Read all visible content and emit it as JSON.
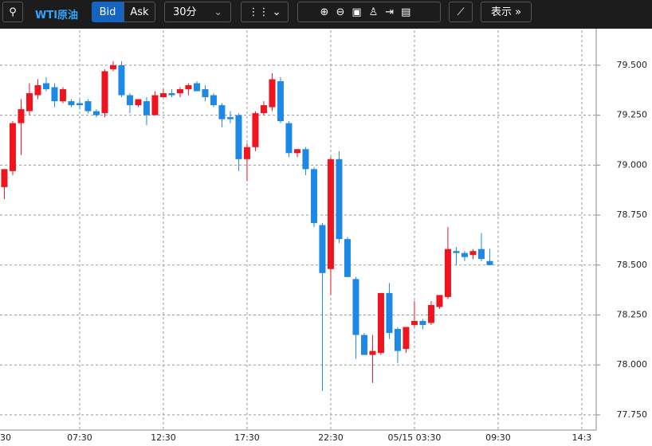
{
  "toolbar": {
    "instrument": "WTI原油",
    "bid": "Bid",
    "ask": "Ask",
    "interval": "30分",
    "display": "表示"
  },
  "chart_data": {
    "type": "candlestick",
    "up_color": "#f0141e",
    "down_color": "#1e88e5",
    "grid": true,
    "open": [
      78.89,
      78.97,
      79.21,
      79.27,
      79.35,
      79.41,
      79.39,
      79.32,
      79.32,
      79.31,
      79.32,
      79.27,
      79.26,
      79.48,
      79.5,
      79.35,
      79.3,
      79.32,
      79.25,
      79.34,
      79.36,
      79.36,
      79.38,
      79.41,
      79.38,
      79.35,
      79.3,
      79.24,
      79.25,
      79.03,
      79.09,
      79.26,
      79.29,
      79.42,
      79.21,
      79.06,
      79.08,
      78.98,
      78.7,
      78.48,
      79.03,
      78.63,
      78.43,
      78.15,
      78.05,
      78.06,
      78.36,
      78.18,
      78.08,
      78.2,
      78.22,
      78.21,
      78.29,
      78.34,
      78.57,
      78.56,
      78.55,
      78.58,
      78.52
    ],
    "high": [
      78.98,
      79.22,
      79.33,
      79.41,
      79.43,
      79.44,
      79.41,
      79.39,
      79.33,
      79.33,
      79.33,
      79.28,
      79.48,
      79.52,
      79.52,
      79.36,
      79.33,
      79.34,
      79.37,
      79.38,
      79.38,
      79.39,
      79.41,
      79.42,
      79.4,
      79.36,
      79.31,
      79.27,
      79.26,
      79.11,
      79.27,
      79.32,
      79.46,
      79.44,
      79.22,
      79.08,
      79.09,
      78.99,
      78.71,
      79.04,
      79.07,
      78.64,
      78.44,
      78.16,
      78.15,
      78.36,
      78.41,
      78.19,
      78.19,
      78.32,
      78.23,
      78.32,
      78.35,
      78.69,
      78.59,
      78.57,
      78.58,
      78.66,
      78.58
    ],
    "low": [
      78.83,
      78.95,
      79.05,
      79.25,
      79.33,
      79.37,
      79.29,
      79.31,
      79.29,
      79.28,
      79.26,
      79.24,
      79.24,
      79.47,
      79.34,
      79.26,
      79.29,
      79.2,
      79.25,
      79.34,
      79.34,
      79.34,
      79.35,
      79.37,
      79.32,
      79.29,
      79.19,
      79.21,
      78.97,
      78.92,
      79.07,
      79.25,
      79.27,
      79.21,
      79.04,
      79.04,
      78.95,
      78.69,
      77.87,
      78.35,
      78.61,
      78.44,
      78.03,
      78.05,
      77.91,
      78.05,
      78.13,
      78.01,
      78.06,
      78.19,
      78.18,
      78.2,
      78.28,
      78.33,
      78.5,
      78.52,
      78.53,
      78.52,
      78.5
    ],
    "close": [
      78.98,
      79.21,
      79.28,
      79.36,
      79.4,
      79.38,
      79.32,
      79.38,
      79.3,
      79.3,
      79.27,
      79.25,
      79.47,
      79.5,
      79.35,
      79.3,
      79.33,
      79.25,
      79.35,
      79.36,
      79.35,
      79.38,
      79.4,
      79.37,
      79.34,
      79.3,
      79.23,
      79.23,
      79.03,
      79.09,
      79.26,
      79.3,
      79.43,
      79.22,
      79.06,
      79.08,
      78.98,
      78.71,
      78.46,
      79.03,
      78.63,
      78.44,
      78.15,
      78.05,
      78.07,
      78.36,
      78.16,
      78.07,
      78.19,
      78.22,
      78.2,
      78.3,
      78.35,
      78.58,
      78.56,
      78.54,
      78.57,
      78.53,
      78.5
    ],
    "xlim": [
      -0.52,
      70.72
    ],
    "xticks": [
      {
        "value": -1,
        "label": "30"
      },
      {
        "value": 9,
        "label": "07:30"
      },
      {
        "value": 19,
        "label": "12:30"
      },
      {
        "value": 29,
        "label": "17:30"
      },
      {
        "value": 39,
        "label": "22:30"
      },
      {
        "value": 49,
        "label": "05/15 03:30"
      },
      {
        "value": 59,
        "label": "09:30"
      },
      {
        "value": 69,
        "label": "14:3"
      }
    ],
    "ylim": [
      77.674,
      79.675
    ],
    "yticks": [
      {
        "value": 77.75,
        "label": "77.750"
      },
      {
        "value": 78,
        "label": "78.000"
      },
      {
        "value": 78.25,
        "label": "78.250"
      },
      {
        "value": 78.5,
        "label": "78.500"
      },
      {
        "value": 78.75,
        "label": "78.750"
      },
      {
        "value": 79,
        "label": "79.000"
      },
      {
        "value": 79.25,
        "label": "79.250"
      },
      {
        "value": 79.5,
        "label": "79.500"
      }
    ]
  }
}
